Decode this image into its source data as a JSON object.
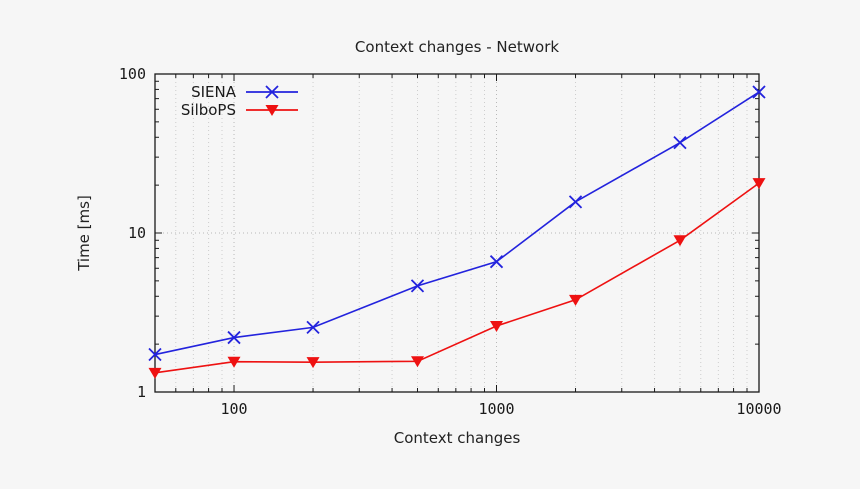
{
  "figure": {
    "background": "#f6f6f6",
    "axis_color": "#1a1a1a",
    "grid_minor_color": "#cdcdcd",
    "grid_major_color": "#b8b8b8"
  },
  "chart_data": {
    "type": "line",
    "title": "Context changes - Network",
    "xlabel": "Context changes",
    "ylabel": "Time [ms]",
    "x_scale": "log",
    "y_scale": "log",
    "xlim": [
      50,
      10000
    ],
    "ylim": [
      1,
      100
    ],
    "x_ticks": [
      100,
      1000,
      10000
    ],
    "y_ticks": [
      1,
      10,
      100
    ],
    "grid": {
      "vertical": "dotted lines at log minor and major x ticks",
      "horizontal": "dotted line at y=10 only"
    },
    "legend_position": "top-left-inside",
    "x": [
      50,
      100,
      200,
      500,
      1000,
      2000,
      5000,
      10000
    ],
    "series": [
      {
        "name": "SIENA",
        "color": "#2323dd",
        "marker": "x-cross",
        "values": [
          1.72,
          2.2,
          2.55,
          4.65,
          6.6,
          15.7,
          37,
          77
        ]
      },
      {
        "name": "SilboPS",
        "color": "#ee1111",
        "marker": "triangle-down",
        "values": [
          1.32,
          1.55,
          1.54,
          1.56,
          2.6,
          3.8,
          9.0,
          20.6
        ]
      }
    ]
  }
}
